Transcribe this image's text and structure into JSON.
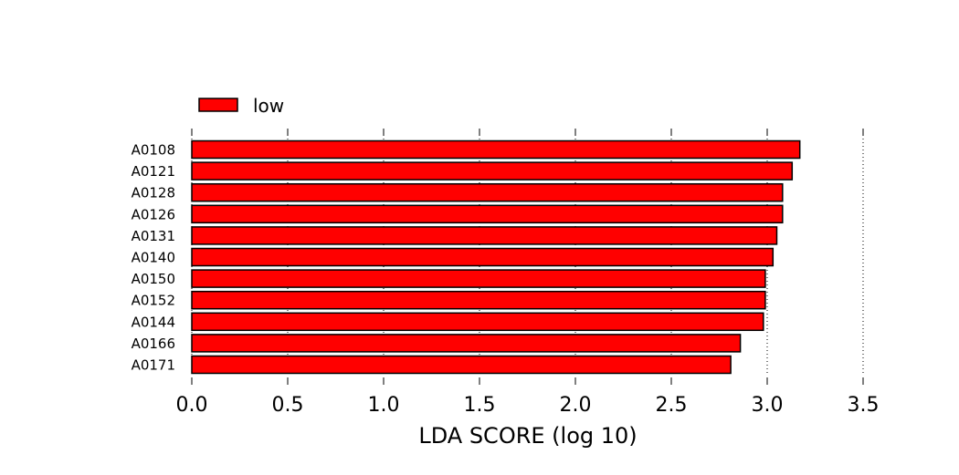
{
  "chart_data": {
    "type": "bar",
    "orientation": "horizontal",
    "xlabel": "LDA SCORE (log 10)",
    "xlim": [
      0,
      3.5
    ],
    "xticks": [
      0.0,
      0.5,
      1.0,
      1.5,
      2.0,
      2.5,
      3.0,
      3.5
    ],
    "xtick_labels": [
      "0.0",
      "0.5",
      "1.0",
      "1.5",
      "2.0",
      "2.5",
      "3.0",
      "3.5"
    ],
    "grid": "vertical dotted lines at x ticks",
    "legend_position": "top-left",
    "categories": [
      "A0108",
      "A0121",
      "A0128",
      "A0126",
      "A0131",
      "A0140",
      "A0150",
      "A0152",
      "A0144",
      "A0166",
      "A0171"
    ],
    "series": [
      {
        "name": "low",
        "color": "#ff0000",
        "values": [
          3.17,
          3.13,
          3.08,
          3.08,
          3.05,
          3.03,
          2.99,
          2.99,
          2.98,
          2.86,
          2.81
        ]
      }
    ]
  }
}
